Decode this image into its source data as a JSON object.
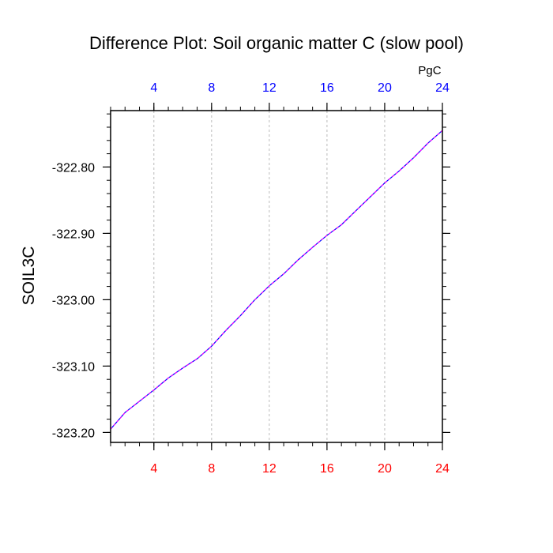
{
  "chart_data": {
    "type": "line",
    "title": "Difference Plot: Soil organic matter C (slow pool)",
    "ylabel": "SOIL3C",
    "units_label": "PgC",
    "xlim": [
      1,
      24
    ],
    "ylim": [
      -323.215,
      -322.715
    ],
    "x_ticks": [
      4,
      8,
      12,
      16,
      20,
      24
    ],
    "y_ticks": [
      -323.2,
      -323.1,
      -323.0,
      -322.9,
      -322.8
    ],
    "y_tick_labels": [
      "-323.20",
      "-323.10",
      "-323.00",
      "-322.90",
      "-322.80"
    ],
    "grid": "vertical-dashed",
    "colors": {
      "bottom_ticks": "#ff0000",
      "top_ticks": "#0000ff",
      "line_solid": "#0000ff",
      "line_dash": "#ff00ff",
      "grid": "#bbbbbb",
      "axis": "#000000"
    },
    "series": [
      {
        "x": [
          1,
          2,
          3,
          4,
          5,
          6,
          7,
          8,
          9,
          10,
          11,
          12,
          13,
          14,
          15,
          16,
          17,
          18,
          19,
          20,
          21,
          22,
          23,
          24
        ],
        "values": [
          -323.195,
          -323.17,
          -323.153,
          -323.136,
          -323.118,
          -323.103,
          -323.089,
          -323.07,
          -323.046,
          -323.024,
          -323.0,
          -322.979,
          -322.961,
          -322.94,
          -322.921,
          -322.903,
          -322.887,
          -322.866,
          -322.845,
          -322.824,
          -322.806,
          -322.786,
          -322.764,
          -322.745
        ]
      }
    ]
  }
}
